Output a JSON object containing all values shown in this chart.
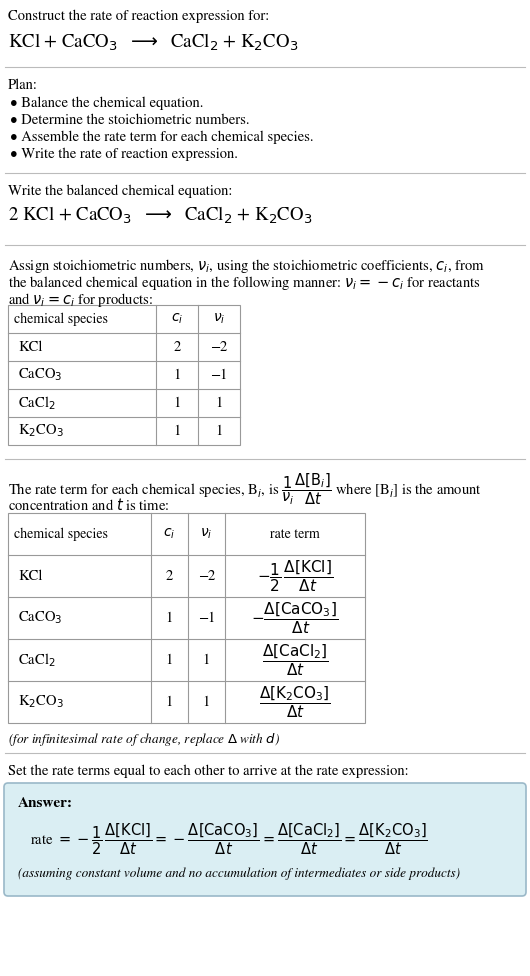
{
  "bg_color": "#ffffff",
  "text_color": "#000000",
  "section1_title": "Construct the rate of reaction expression for:",
  "section1_eq": "KCl + CaCO$_3$  $\\longrightarrow$  CaCl$_2$ + K$_2$CO$_3$",
  "section2_title": "Plan:",
  "section2_bullets": [
    "• Balance the chemical equation.",
    "• Determine the stoichiometric numbers.",
    "• Assemble the rate term for each chemical species.",
    "• Write the rate of reaction expression."
  ],
  "section3_title": "Write the balanced chemical equation:",
  "section3_eq": "2 KCl + CaCO$_3$  $\\longrightarrow$  CaCl$_2$ + K$_2$CO$_3$",
  "section4_line1": "Assign stoichiometric numbers, $\\nu_i$, using the stoichiometric coefficients, $c_i$, from",
  "section4_line2": "the balanced chemical equation in the following manner: $\\nu_i = -c_i$ for reactants",
  "section4_line3": "and $\\nu_i = c_i$ for products:",
  "table1_headers": [
    "chemical species",
    "$c_i$",
    "$\\nu_i$"
  ],
  "table1_rows": [
    [
      "KCl",
      "2",
      "−2"
    ],
    [
      "CaCO$_3$",
      "1",
      "−1"
    ],
    [
      "CaCl$_2$",
      "1",
      "1"
    ],
    [
      "K$_2$CO$_3$",
      "1",
      "1"
    ]
  ],
  "section5_line1": "The rate term for each chemical species, B$_i$, is $\\dfrac{1}{\\nu_i}\\dfrac{\\Delta[\\mathrm{B}_i]}{\\Delta t}$ where [B$_i$] is the amount",
  "section5_line2": "concentration and $t$ is time:",
  "table2_headers": [
    "chemical species",
    "$c_i$",
    "$\\nu_i$",
    "rate term"
  ],
  "table2_rows": [
    [
      "KCl",
      "2",
      "−2",
      "$-\\dfrac{1}{2}\\,\\dfrac{\\Delta[\\mathrm{KCl}]}{\\Delta t}$"
    ],
    [
      "CaCO$_3$",
      "1",
      "−1",
      "$-\\dfrac{\\Delta[\\mathrm{CaCO_3}]}{\\Delta t}$"
    ],
    [
      "CaCl$_2$",
      "1",
      "1",
      "$\\dfrac{\\Delta[\\mathrm{CaCl_2}]}{\\Delta t}$"
    ],
    [
      "K$_2$CO$_3$",
      "1",
      "1",
      "$\\dfrac{\\Delta[\\mathrm{K_2CO_3}]}{\\Delta t}$"
    ]
  ],
  "infinitesimal_note": "(for infinitesimal rate of change, replace $\\Delta$ with $d$)",
  "section6_title": "Set the rate terms equal to each other to arrive at the rate expression:",
  "answer_bg": "#daeef3",
  "answer_border": "#9ab8c8",
  "answer_label": "Answer:",
  "answer_note": "(assuming constant volume and no accumulation of intermediates or side products)"
}
